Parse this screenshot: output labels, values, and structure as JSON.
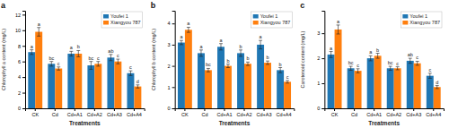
{
  "chart_data": [
    {
      "type": "bar",
      "title": "a",
      "ylabel": "Chlorophyll a content (mg/L)",
      "xlabel": "Treatments",
      "categories": [
        "CK",
        "Cd",
        "Cd+A1",
        "Cd+A2",
        "Cd+A3",
        "Cd+A4"
      ],
      "series": [
        {
          "name": "Youfei 1",
          "values": [
            7.2,
            5.7,
            7.0,
            5.5,
            6.5,
            4.5
          ],
          "errors": [
            0.3,
            0.3,
            0.3,
            0.5,
            0.4,
            0.3
          ],
          "letters": [
            "a",
            "bc",
            "a",
            "bc",
            "ab",
            "c"
          ]
        },
        {
          "name": "Xiangyou 787",
          "values": [
            9.8,
            5.1,
            7.0,
            5.7,
            6.0,
            2.8
          ],
          "errors": [
            0.55,
            0.2,
            0.4,
            0.3,
            0.3,
            0.2
          ],
          "letters": [
            "a",
            "c",
            "b",
            "c",
            "c",
            "d"
          ]
        }
      ],
      "ylim": [
        0,
        12.5
      ],
      "yticks": [
        0,
        2,
        4,
        6,
        8,
        10,
        12
      ],
      "grid": false,
      "legend": "upper right"
    },
    {
      "type": "bar",
      "title": "b",
      "ylabel": "Chlorophyll b content (mg/L)",
      "xlabel": "Treatments",
      "categories": [
        "CK",
        "Cd",
        "Cd+A1",
        "Cd+A2",
        "Cd+A3",
        "Cd+A4"
      ],
      "series": [
        {
          "name": "Youfei 1",
          "values": [
            3.1,
            2.6,
            2.9,
            2.6,
            3.0,
            1.8
          ],
          "errors": [
            0.1,
            0.15,
            0.15,
            0.15,
            0.2,
            0.12
          ],
          "letters": [
            "a",
            "a",
            "a",
            "b",
            "a",
            "b"
          ]
        },
        {
          "name": "Xiangyou 787",
          "values": [
            3.7,
            1.8,
            2.0,
            2.1,
            2.15,
            1.25
          ],
          "errors": [
            0.12,
            0.08,
            0.08,
            0.08,
            0.08,
            0.06
          ],
          "letters": [
            "a",
            "bc",
            "b",
            "b",
            "b",
            "c"
          ]
        }
      ],
      "ylim": [
        0,
        4.6
      ],
      "yticks": [
        0,
        1,
        2,
        3,
        4
      ],
      "grid": false,
      "legend": "upper right"
    },
    {
      "type": "bar",
      "title": "c",
      "ylabel": "Carotenoid content (mg/L)",
      "xlabel": "Treatments",
      "categories": [
        "CK",
        "Cd",
        "Cd+A1",
        "Cd+A2",
        "Cd+A3",
        "Cd+A4"
      ],
      "series": [
        {
          "name": "Youfei 1",
          "values": [
            2.15,
            1.6,
            2.0,
            1.6,
            1.9,
            1.3
          ],
          "errors": [
            0.12,
            0.08,
            0.1,
            0.08,
            0.1,
            0.1
          ],
          "letters": [
            "a",
            "bc",
            "a",
            "bc",
            "ab",
            "c"
          ]
        },
        {
          "name": "Xiangyou 787",
          "values": [
            3.15,
            1.5,
            2.1,
            1.6,
            1.8,
            0.85
          ],
          "errors": [
            0.18,
            0.08,
            0.1,
            0.06,
            0.08,
            0.06
          ],
          "letters": [
            "a",
            "c",
            "b",
            "c",
            "c",
            "d"
          ]
        }
      ],
      "ylim": [
        0,
        3.9
      ],
      "yticks": [
        0,
        1,
        2,
        3
      ],
      "grid": false,
      "legend": "upper right"
    }
  ]
}
